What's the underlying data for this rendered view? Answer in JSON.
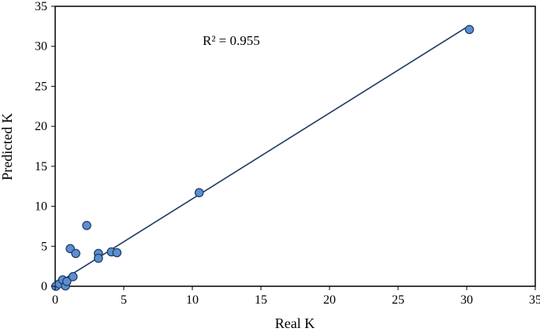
{
  "chart_data": {
    "type": "scatter",
    "xlabel": "Real K",
    "ylabel": "Predicted K",
    "xlim": [
      0,
      35
    ],
    "ylim": [
      0,
      35
    ],
    "x_ticks": [
      "0",
      "5",
      "10",
      "15",
      "20",
      "25",
      "30",
      "35"
    ],
    "y_ticks": [
      "0",
      "5",
      "10",
      "15",
      "20",
      "25",
      "30",
      "35"
    ],
    "grid": false,
    "legend": "none",
    "annotation": "R² = 0.955",
    "points": [
      {
        "x": 0.05,
        "y": 0.0
      },
      {
        "x": 0.3,
        "y": 0.3
      },
      {
        "x": 0.55,
        "y": 0.8
      },
      {
        "x": 0.75,
        "y": 0.05
      },
      {
        "x": 0.85,
        "y": 0.6
      },
      {
        "x": 1.1,
        "y": 4.7
      },
      {
        "x": 1.3,
        "y": 1.2
      },
      {
        "x": 1.5,
        "y": 4.1
      },
      {
        "x": 2.3,
        "y": 7.6
      },
      {
        "x": 3.15,
        "y": 4.1
      },
      {
        "x": 3.15,
        "y": 3.5
      },
      {
        "x": 4.1,
        "y": 4.3
      },
      {
        "x": 4.5,
        "y": 4.2
      },
      {
        "x": 10.5,
        "y": 11.7
      },
      {
        "x": 30.2,
        "y": 32.1
      }
    ],
    "trendline": {
      "x": [
        0,
        30.2
      ],
      "y": [
        0.2,
        32.6
      ]
    },
    "colors": {
      "marker_fill": "#5b8fd0",
      "marker_stroke": "#1f3864",
      "line": "#1f3864",
      "frame": "#000000"
    }
  }
}
